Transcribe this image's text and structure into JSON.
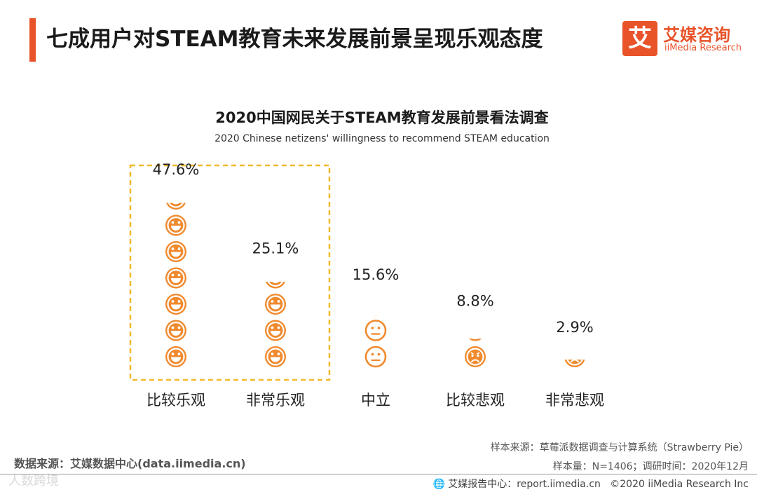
{
  "colors": {
    "accent": "#f08a2e",
    "brand_red": "#e8532a",
    "highlight_border": "#f2b92b"
  },
  "header": {
    "title": "七成用户对STEAM教育未来发展前景呈现乐观态度",
    "logo_mark": "艾",
    "logo_name": "艾媒咨询",
    "logo_sub": "iiMedia Research"
  },
  "chart_data": {
    "type": "pictograph",
    "title": "2020中国网民关于STEAM教育发展前景看法调查",
    "subtitle": "2020 Chinese netizens' willingness to recommend STEAM education",
    "categories": [
      "比较乐观",
      "非常乐观",
      "中立",
      "比较悲观",
      "非常悲观"
    ],
    "values": [
      47.6,
      25.1,
      15.6,
      8.8,
      2.9
    ],
    "value_labels": [
      "47.6%",
      "25.1%",
      "15.6%",
      "8.8%",
      "2.9%"
    ],
    "unit_value": 7.5,
    "icon_types": [
      "laugh",
      "laugh",
      "neutral",
      "sad",
      "sad"
    ],
    "highlighted_categories": [
      "比较乐观",
      "非常乐观"
    ]
  },
  "footer": {
    "data_source": "数据来源：艾媒数据中心(data.iimedia.cn)",
    "sample_source": "样本来源：草莓派数据调查与计算系统（Strawberry Pie）",
    "sample_size": "样本量：N=1406；调研时间：2020年12月",
    "report_center": "艾媒报告中心：report.iimedia.cn",
    "copyright": "©2020 iiMedia Research Inc",
    "watermark": "人数跨境"
  }
}
